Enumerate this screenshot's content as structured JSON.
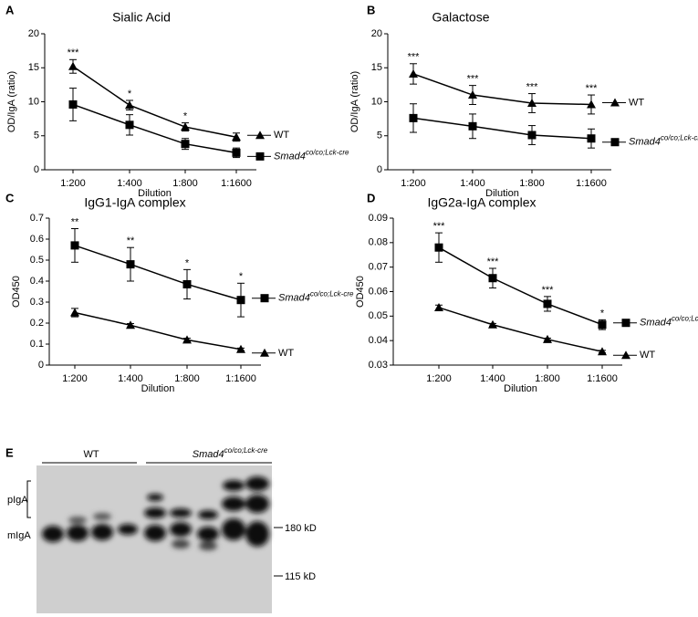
{
  "chart_data": [
    {
      "type": "line",
      "panel_label": "A",
      "title": "Sialic Acid",
      "x_label": "Dilution",
      "y_label": "OD/IgA (ratio)",
      "categories": [
        "1:200",
        "1:400",
        "1:800",
        "1:1600"
      ],
      "series": [
        {
          "name": "WT",
          "color": "#000000",
          "marker": "triangle",
          "values": [
            15.2,
            9.5,
            6.3,
            4.8
          ],
          "errors": [
            1.0,
            0.7,
            0.6,
            0.6
          ]
        },
        {
          "name": "Smad4",
          "superscript": "co/co;Lck-cre",
          "color": "#000000",
          "marker": "square",
          "values": [
            9.6,
            6.6,
            3.8,
            2.5
          ],
          "errors": [
            2.4,
            1.5,
            0.8,
            0.7
          ]
        }
      ],
      "significance": [
        "***",
        "*",
        "*",
        null
      ],
      "significance_series": 0,
      "ylim": [
        0,
        20
      ],
      "yticks": [
        0,
        5,
        10,
        15,
        20
      ]
    },
    {
      "type": "line",
      "panel_label": "B",
      "title": "Galactose",
      "x_label": "Dilution",
      "y_label": "OD/IgA (ratio)",
      "categories": [
        "1:200",
        "1:400",
        "1:800",
        "1:1600"
      ],
      "series": [
        {
          "name": "WT",
          "color": "#000000",
          "marker": "triangle",
          "values": [
            14.1,
            11.0,
            9.8,
            9.6
          ],
          "errors": [
            1.5,
            1.4,
            1.4,
            1.4
          ]
        },
        {
          "name": "Smad4",
          "superscript": "co/co;Lck-cre",
          "color": "#000000",
          "marker": "square",
          "values": [
            7.6,
            6.4,
            5.1,
            4.6
          ],
          "errors": [
            2.1,
            1.8,
            1.4,
            1.4
          ]
        }
      ],
      "significance": [
        "***",
        "***",
        "***",
        "***"
      ],
      "significance_series": 0,
      "ylim": [
        0,
        20
      ],
      "yticks": [
        0,
        5,
        10,
        15,
        20
      ]
    },
    {
      "type": "line",
      "panel_label": "C",
      "title": "IgG1-IgA complex",
      "x_label": "Dilution",
      "y_label": "OD450",
      "categories": [
        "1:200",
        "1:400",
        "1:800",
        "1:1600"
      ],
      "series": [
        {
          "name": "Smad4",
          "superscript": "co/co;Lck-cre",
          "color": "#000000",
          "marker": "square",
          "values": [
            0.57,
            0.48,
            0.385,
            0.31
          ],
          "errors": [
            0.08,
            0.08,
            0.07,
            0.08
          ]
        },
        {
          "name": "WT",
          "color": "#000000",
          "marker": "triangle",
          "values": [
            0.25,
            0.19,
            0.12,
            0.075
          ],
          "errors": [
            0.02,
            0.008,
            0.008,
            0.006
          ]
        }
      ],
      "significance": [
        "**",
        "**",
        "*",
        "*"
      ],
      "significance_series": 0,
      "ylim": [
        0,
        0.7
      ],
      "yticks": [
        0,
        0.1,
        0.2,
        0.3,
        0.4,
        0.5,
        0.6,
        0.7
      ]
    },
    {
      "type": "line",
      "panel_label": "D",
      "title": "IgG2a-IgA complex",
      "x_label": "Dilution",
      "y_label": "OD450",
      "categories": [
        "1:200",
        "1:400",
        "1:800",
        "1:1600"
      ],
      "series": [
        {
          "name": "Smad4",
          "superscript": "co/co;Lck-cre",
          "color": "#000000",
          "marker": "square",
          "values": [
            0.078,
            0.0655,
            0.055,
            0.0465
          ],
          "errors": [
            0.006,
            0.004,
            0.003,
            0.002
          ]
        },
        {
          "name": "WT",
          "color": "#000000",
          "marker": "triangle",
          "values": [
            0.0535,
            0.0465,
            0.0405,
            0.0355
          ],
          "errors": [
            0.001,
            0.0005,
            0.0005,
            0.0005
          ]
        }
      ],
      "significance": [
        "***",
        "***",
        "***",
        "*"
      ],
      "significance_series": 0,
      "ylim": [
        0.03,
        0.09
      ],
      "yticks": [
        0.03,
        0.04,
        0.05,
        0.06,
        0.07,
        0.08,
        0.09
      ]
    }
  ],
  "blot": {
    "panel_label": "E",
    "group_wt": "WT",
    "group_ko": "Smad4",
    "group_ko_superscript": "co/co;Lck-cre",
    "band_upper": "pIgA",
    "band_lower": "mIgA",
    "marker_1": "180 kD",
    "marker_2": "115 kD"
  }
}
